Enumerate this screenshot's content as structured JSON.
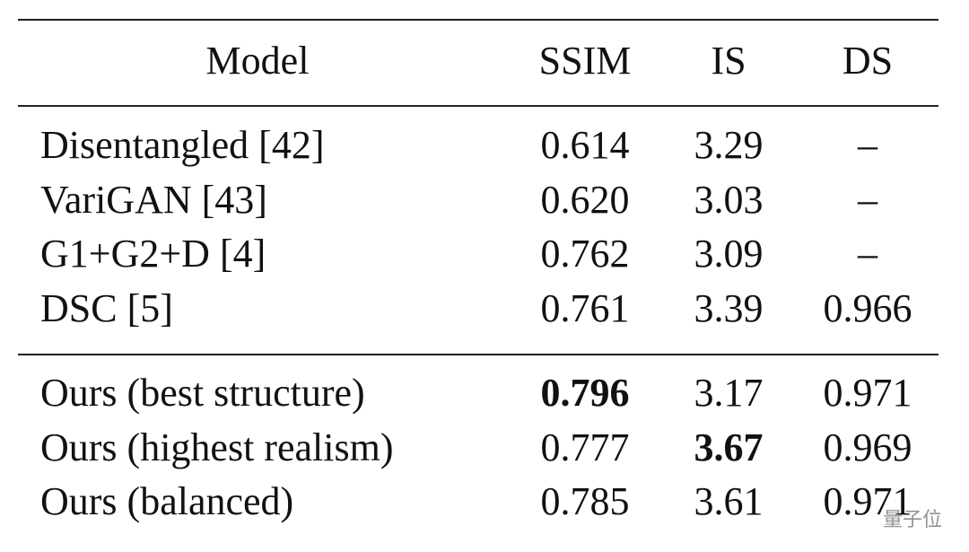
{
  "table": {
    "header": [
      "Model",
      "SSIM",
      "IS",
      "DS"
    ],
    "sections": [
      [
        [
          "Disentangled [42]",
          "0.614",
          "3.29",
          "–"
        ],
        [
          "VariGAN [43]",
          "0.620",
          "3.03",
          "–"
        ],
        [
          "G1+G2+D [4]",
          "0.762",
          "3.09",
          "–"
        ],
        [
          "DSC [5]",
          "0.761",
          "3.39",
          "0.966"
        ]
      ],
      [
        [
          "Ours (best structure)",
          {
            "text": "0.796",
            "bold": true
          },
          "3.17",
          "0.971"
        ],
        [
          "Ours (highest realism)",
          "0.777",
          {
            "text": "3.67",
            "bold": true
          },
          "0.969"
        ],
        [
          "Ours (balanced)",
          "0.785",
          "3.61",
          "0.971"
        ]
      ]
    ]
  },
  "watermark": "量子位"
}
